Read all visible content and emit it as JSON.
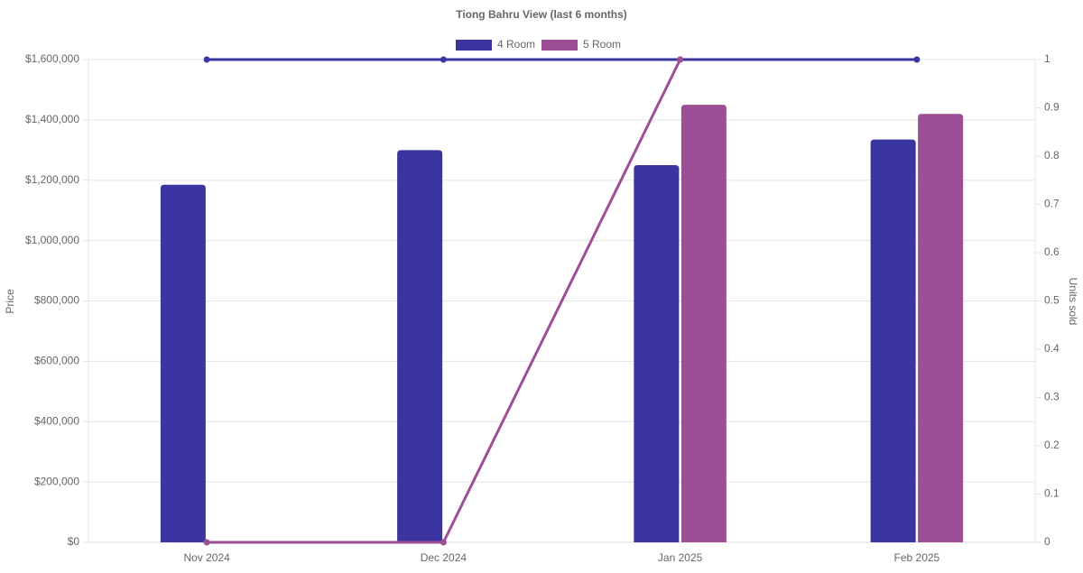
{
  "chart_data": {
    "type": "bar",
    "title": "Tiong Bahru View (last 6 months)",
    "y_label": "Price",
    "y2_label": "Units sold",
    "categories": [
      "Nov 2024",
      "Dec 2024",
      "Jan 2025",
      "Feb 2025"
    ],
    "series": [
      {
        "name": "4 Room",
        "color": "#3a35a0",
        "values": [
          1185000,
          1300000,
          1250000,
          1335000
        ]
      },
      {
        "name": "5 Room",
        "color": "#9d4f96",
        "values": [
          null,
          null,
          1450000,
          1420000
        ]
      },
      {
        "type": "line",
        "axis": "y2",
        "color": "#3a35a0",
        "values": [
          1,
          1,
          1,
          1
        ]
      },
      {
        "type": "line",
        "axis": "y2",
        "color": "#9d4f96",
        "values": [
          0,
          0,
          1,
          null
        ]
      }
    ],
    "ylim": [
      0,
      1600000
    ],
    "yticks": [
      {
        "value": 0,
        "label": "$0"
      },
      {
        "value": 200000,
        "label": "$200,000"
      },
      {
        "value": 400000,
        "label": "$400,000"
      },
      {
        "value": 600000,
        "label": "$600,000"
      },
      {
        "value": 800000,
        "label": "$800,000"
      },
      {
        "value": 1000000,
        "label": "$1,000,000"
      },
      {
        "value": 1200000,
        "label": "$1,200,000"
      },
      {
        "value": 1400000,
        "label": "$1,400,000"
      },
      {
        "value": 1600000,
        "label": "$1,600,000"
      }
    ],
    "y2lim": [
      0,
      1
    ],
    "y2ticks": [
      0,
      0.1,
      0.2,
      0.3,
      0.4,
      0.5,
      0.6,
      0.7,
      0.8,
      0.9,
      1
    ],
    "grid": true
  }
}
